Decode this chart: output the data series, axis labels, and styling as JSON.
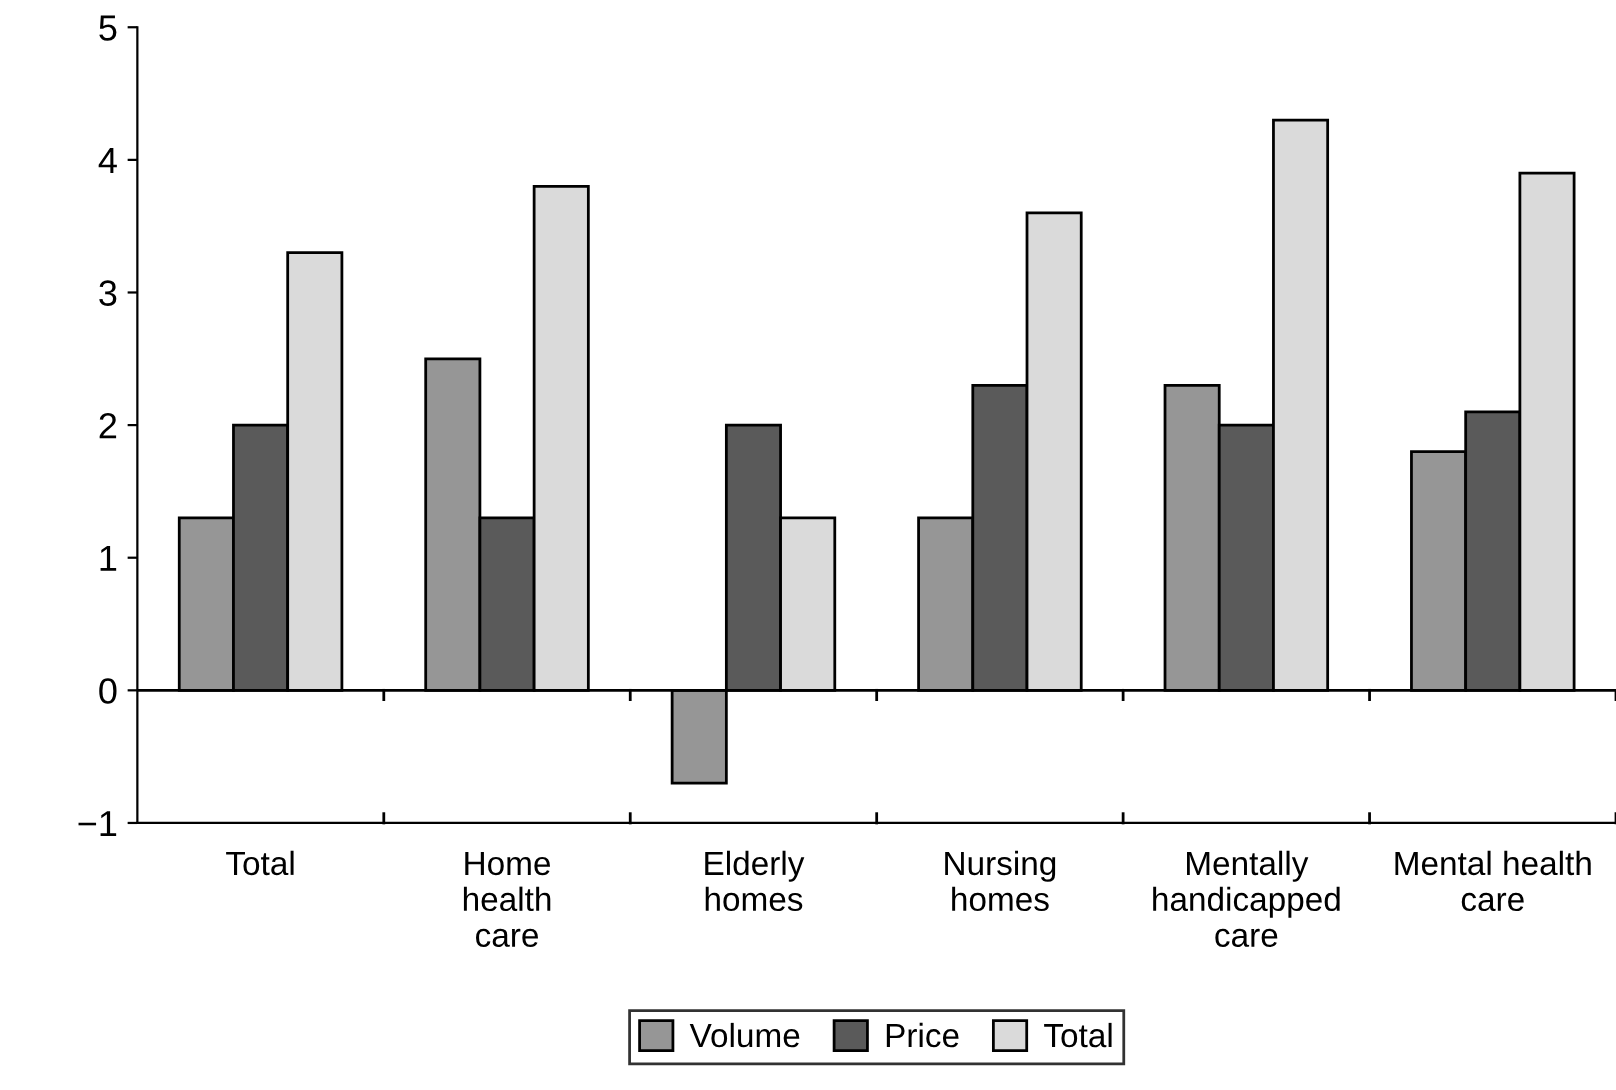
{
  "chart_data": {
    "type": "bar",
    "categories": [
      "Total",
      "Home\nhealth\ncare",
      "Elderly\nhomes",
      "Nursing\nhomes",
      "Mentally\nhandicapped\ncare",
      "Mental health\ncare"
    ],
    "series": [
      {
        "name": "Volume",
        "color": "#969696",
        "values": [
          1.3,
          2.5,
          -0.7,
          1.3,
          2.3,
          1.8
        ]
      },
      {
        "name": "Price",
        "color": "#5a5a5a",
        "values": [
          2.0,
          1.3,
          2.0,
          2.3,
          2.0,
          2.1
        ]
      },
      {
        "name": "Total",
        "color": "#dadada",
        "values": [
          3.3,
          3.8,
          1.3,
          3.6,
          4.3,
          3.9
        ]
      }
    ],
    "ylim": [
      -1,
      5
    ],
    "yticks": [
      {
        "value": -1,
        "label": "−1"
      },
      0,
      1,
      2,
      3,
      4,
      5
    ],
    "ref_lines": [
      {
        "axis": "y",
        "value": 0,
        "color": "#000000"
      }
    ],
    "grid": false,
    "legend": "bottom"
  }
}
